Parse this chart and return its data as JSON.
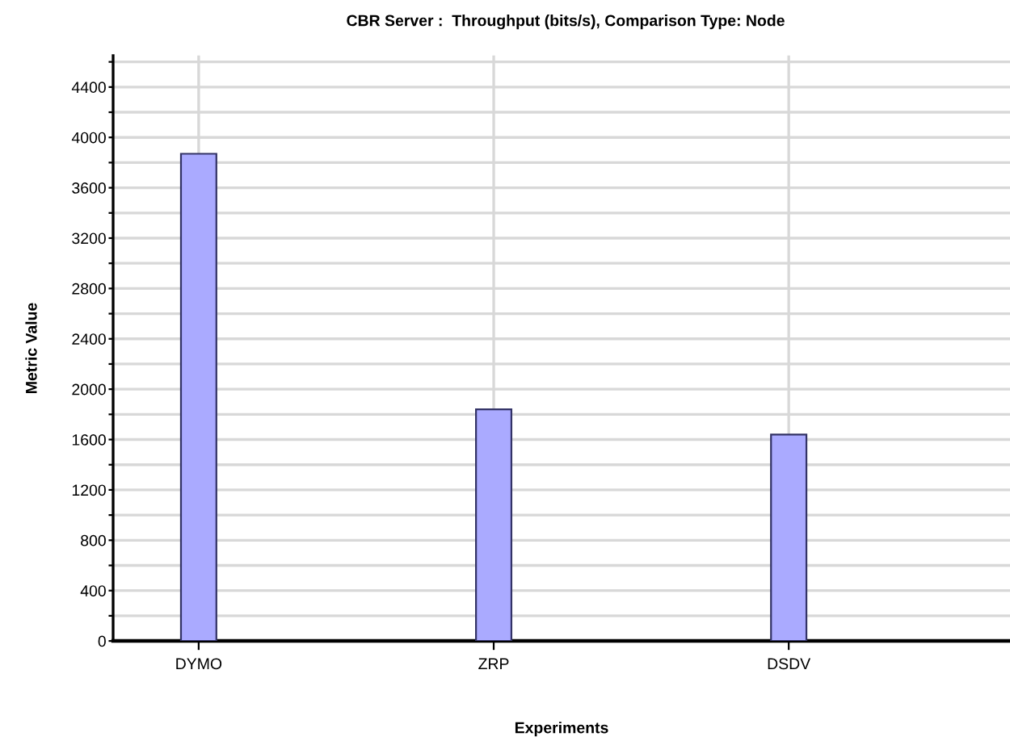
{
  "chart_data": {
    "type": "bar",
    "title": "CBR Server :  Throughput (bits/s), Comparison Type: Node",
    "xlabel": "Experiments",
    "ylabel": "Metric Value",
    "categories": [
      "DYMO",
      "ZRP",
      "DSDV"
    ],
    "values": [
      3870,
      1840,
      1640
    ],
    "color": "#aaaaff",
    "ylim": [
      0,
      4650
    ],
    "yticks": [
      0,
      {
        "value": 200,
        "label": null
      },
      400,
      {
        "value": 600,
        "label": null
      },
      800,
      {
        "value": 1000,
        "label": null
      },
      1200,
      {
        "value": 1400,
        "label": null
      },
      1600,
      {
        "value": 1800,
        "label": null
      },
      2000,
      {
        "value": 2200,
        "label": null
      },
      2400,
      {
        "value": 2600,
        "label": null
      },
      2800,
      {
        "value": 3000,
        "label": null
      },
      3200,
      {
        "value": 3400,
        "label": null
      },
      3600,
      {
        "value": 3800,
        "label": null
      },
      4000,
      {
        "value": 4200,
        "label": null
      },
      4400,
      {
        "value": 4600,
        "label": null
      }
    ],
    "grid": true
  }
}
